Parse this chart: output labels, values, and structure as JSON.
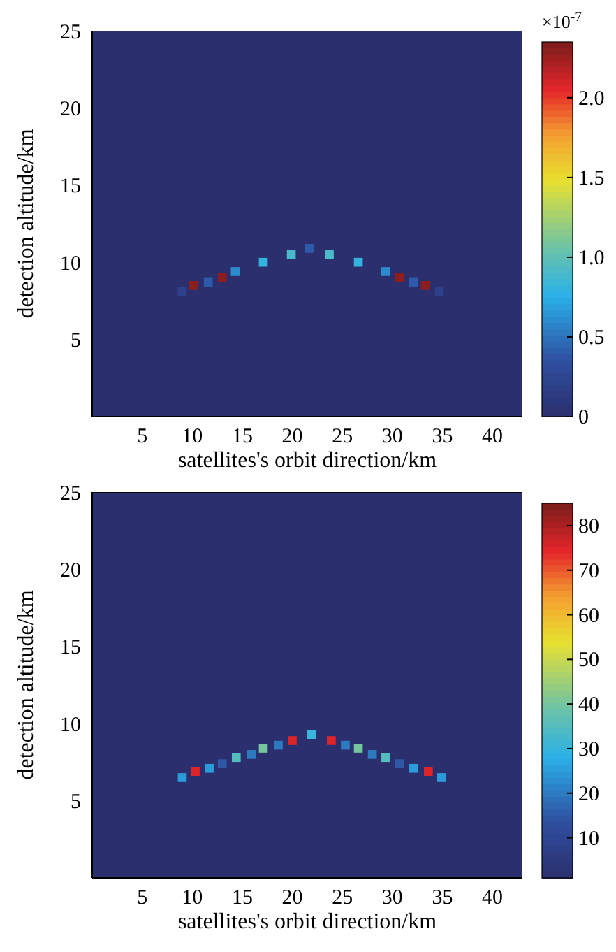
{
  "chart_data": [
    {
      "type": "scatter",
      "marker": "square",
      "xlabel": "satellites's orbit direction/km",
      "ylabel": "detection altitude/km",
      "xlim": [
        0,
        43
      ],
      "ylim": [
        0,
        25
      ],
      "xticks": [
        5,
        10,
        15,
        20,
        25,
        30,
        35,
        40
      ],
      "yticks": [
        5,
        10,
        15,
        20,
        25
      ],
      "clabel": "×10$^{-7}$",
      "clim": [
        0,
        2.35
      ],
      "cticks": [
        0,
        {
          "value": 0.5,
          "label": "0.5"
        },
        {
          "value": 1,
          "label": "1.0"
        },
        {
          "value": 1.5,
          "label": "1.5"
        },
        {
          "value": 2,
          "label": "2.0"
        }
      ],
      "series": [
        {
          "x": [
            9,
            10.1,
            11.6,
            13,
            14.3,
            17.1,
            19.9,
            21.7,
            23.7,
            26.6,
            29.3,
            30.7,
            32.1,
            33.3,
            34.7
          ],
          "values": [
            8.1,
            8.5,
            8.7,
            9,
            9.4,
            10,
            10.5,
            10.9,
            10.5,
            10,
            9.4,
            9,
            8.7,
            8.5,
            8.1
          ],
          "cvalues": [
            0.2,
            2.3,
            0.4,
            2.3,
            0.6,
            0.8,
            0.9,
            0.4,
            0.9,
            0.8,
            0.6,
            2.3,
            0.4,
            2.3,
            0.2
          ]
        }
      ]
    },
    {
      "type": "scatter",
      "marker": "square",
      "xlabel": "satellites's orbit direction/km",
      "ylabel": "detection altitude/km",
      "xlim": [
        0,
        43
      ],
      "ylim": [
        0,
        25
      ],
      "xticks": [
        5,
        10,
        15,
        20,
        25,
        30,
        35,
        40
      ],
      "yticks": [
        5,
        10,
        15,
        20,
        25
      ],
      "clim": [
        1,
        85
      ],
      "cticks": [
        10,
        20,
        30,
        40,
        50,
        60,
        70,
        80
      ],
      "series": [
        {
          "x": [
            9,
            10.3,
            11.7,
            13,
            14.4,
            15.9,
            17.1,
            18.6,
            20,
            21.9,
            23.9,
            25.3,
            26.6,
            28,
            29.3,
            30.7,
            32.1,
            33.6,
            34.9
          ],
          "values": [
            6.5,
            6.9,
            7.1,
            7.4,
            7.8,
            8,
            8.4,
            8.6,
            8.9,
            9.3,
            8.9,
            8.6,
            8.4,
            8,
            7.8,
            7.4,
            7.1,
            6.9,
            6.5
          ],
          "cvalues": [
            25,
            75,
            25,
            15,
            35,
            20,
            40,
            20,
            75,
            30,
            75,
            20,
            40,
            20,
            35,
            15,
            25,
            75,
            25
          ]
        }
      ]
    }
  ]
}
